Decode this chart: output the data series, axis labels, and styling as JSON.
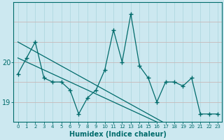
{
  "xlabel": "Humidex (Indice chaleur)",
  "bg_color": "#cce8f0",
  "line_color": "#006b6b",
  "grid_color_v": "#b0d8e0",
  "grid_color_h": "#c8b8b8",
  "x": [
    0,
    1,
    2,
    3,
    4,
    5,
    6,
    7,
    8,
    9,
    10,
    11,
    12,
    13,
    14,
    15,
    16,
    17,
    18,
    19,
    20,
    21,
    22,
    23
  ],
  "y_main": [
    19.7,
    20.1,
    20.5,
    19.6,
    19.5,
    19.5,
    19.3,
    18.7,
    19.1,
    19.3,
    19.8,
    20.8,
    20.0,
    21.2,
    19.9,
    19.6,
    19.0,
    19.5,
    19.5,
    19.4,
    19.6,
    18.7,
    18.7,
    18.7
  ],
  "y_trend_upper": [
    20.5,
    20.38,
    20.26,
    20.14,
    20.02,
    19.9,
    19.78,
    19.66,
    19.54,
    19.42,
    19.3,
    19.18,
    19.06,
    18.94,
    18.82,
    18.7,
    18.58,
    18.46,
    18.34,
    18.22,
    18.1,
    17.98,
    17.86,
    17.74
  ],
  "y_trend_lower": [
    20.1,
    20.0,
    19.9,
    19.8,
    19.7,
    19.6,
    19.5,
    19.4,
    19.3,
    19.2,
    19.1,
    19.0,
    18.9,
    18.8,
    18.7,
    18.6,
    18.5,
    18.4,
    18.3,
    18.2,
    18.1,
    18.0,
    17.9,
    17.8
  ],
  "ylim_min": 18.5,
  "ylim_max": 21.5,
  "yticks": [
    19,
    20
  ],
  "xlim_min": -0.5,
  "xlim_max": 23.5
}
